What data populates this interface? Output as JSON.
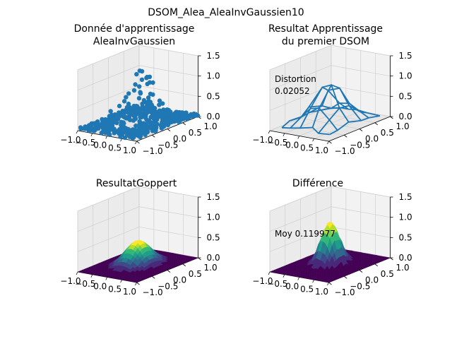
{
  "figure": {
    "suptitle": "DSOM_Alea_AleaInvGaussien10"
  },
  "chart_data": [
    {
      "type": "scatter",
      "projection": "3d",
      "title_line1": "Donnée d'apprentissage",
      "title_line2": "AleaInvGaussien",
      "color": "#1f77b4",
      "xlim": [
        -1.0,
        1.0
      ],
      "ylim": [
        -1.0,
        1.0
      ],
      "zlim": [
        0.0,
        1.5
      ],
      "xticks": [
        "−1.0",
        "−0.5",
        "0.0",
        "0.5",
        "1.0"
      ],
      "yticks": [
        "−1.0",
        "−0.5",
        "0.0",
        "0.5",
        "1.0"
      ],
      "zticks": [
        "0.0",
        "0.5",
        "1.0",
        "1.5"
      ],
      "grid": true,
      "note": "points sampled from inverse-gaussian density: dense near z=0, a spike up to z≈1.5 at center"
    },
    {
      "type": "wireframe",
      "projection": "3d",
      "title_line1": "Resultat Apprentissage",
      "title_line2": "du premier DSOM",
      "color": "#1f77b4",
      "xlim": [
        -1.0,
        1.0
      ],
      "ylim": [
        -1.0,
        1.0
      ],
      "zlim": [
        0.0,
        1.5
      ],
      "xticks": [
        "−1.0",
        "−0.5",
        "0.0",
        "0.5",
        "1.0"
      ],
      "yticks": [
        "−1.0",
        "−0.5",
        "0.0",
        "0.5",
        "1.0"
      ],
      "zticks": [
        "0.0",
        "0.5",
        "1.0",
        "1.5"
      ],
      "annotation_label": "Distortion",
      "annotation_value": "0.02052",
      "grid": true
    },
    {
      "type": "surface",
      "projection": "3d",
      "title_line1": "ResultatGoppert",
      "colormap": "viridis",
      "xlim": [
        -1.0,
        1.0
      ],
      "ylim": [
        -1.0,
        1.0
      ],
      "zlim": [
        0.0,
        1.5
      ],
      "xticks": [
        "−1.0",
        "−0.5",
        "0.0",
        "0.5",
        "1.0"
      ],
      "yticks": [
        "−1.0",
        "−0.5",
        "0.0",
        "0.5",
        "1.0"
      ],
      "zticks": [
        "0.0",
        "0.5",
        "1.0",
        "1.5"
      ],
      "peak_z": 0.6,
      "grid": true
    },
    {
      "type": "surface",
      "projection": "3d",
      "title_line1": "Différence",
      "colormap": "viridis",
      "xlim": [
        -1.0,
        1.0
      ],
      "ylim": [
        -1.0,
        1.0
      ],
      "zlim": [
        0.0,
        1.5
      ],
      "xticks": [
        "−1.0",
        "−0.5",
        "0.0",
        "0.5",
        "1.0"
      ],
      "yticks": [
        "−1.0",
        "−0.5",
        "0.0",
        "0.5",
        "1.0"
      ],
      "zticks": [
        "0.0",
        "0.5",
        "1.0",
        "1.5"
      ],
      "annotation_label": "Moy 0.119977",
      "peak_z": 1.05,
      "grid": true
    }
  ]
}
